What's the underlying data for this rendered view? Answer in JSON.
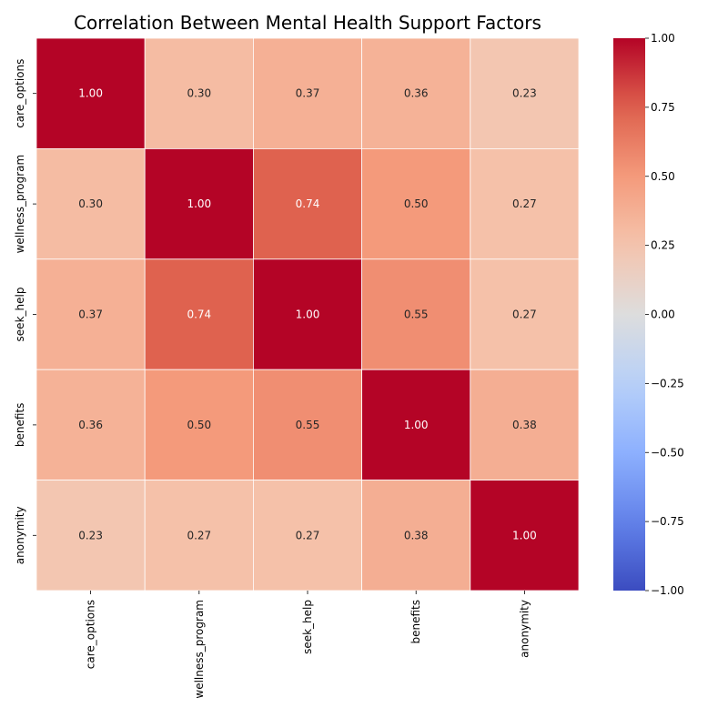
{
  "chart_data": {
    "type": "heatmap",
    "title": "Correlation Between Mental Health Support Factors",
    "row_labels": [
      "care_options",
      "wellness_program",
      "seek_help",
      "benefits",
      "anonymity"
    ],
    "col_labels": [
      "care_options",
      "wellness_program",
      "seek_help",
      "benefits",
      "anonymity"
    ],
    "values": [
      [
        1.0,
        0.3,
        0.37,
        0.36,
        0.23
      ],
      [
        0.3,
        1.0,
        0.74,
        0.5,
        0.27
      ],
      [
        0.37,
        0.74,
        1.0,
        0.55,
        0.27
      ],
      [
        0.36,
        0.5,
        0.55,
        1.0,
        0.38
      ],
      [
        0.23,
        0.27,
        0.27,
        0.38,
        1.0
      ]
    ],
    "value_format": "0.00",
    "colormap": "coolwarm",
    "vmin": -1.0,
    "vmax": 1.0,
    "colorbar_ticks": [
      "1.00",
      "0.75",
      "0.50",
      "0.25",
      "0.00",
      "−0.25",
      "−0.50",
      "−0.75",
      "−1.00"
    ],
    "colorbar_tick_values": [
      1.0,
      0.75,
      0.5,
      0.25,
      0.0,
      -0.25,
      -0.5,
      -0.75,
      -1.0
    ],
    "xlabel": "",
    "ylabel": ""
  }
}
